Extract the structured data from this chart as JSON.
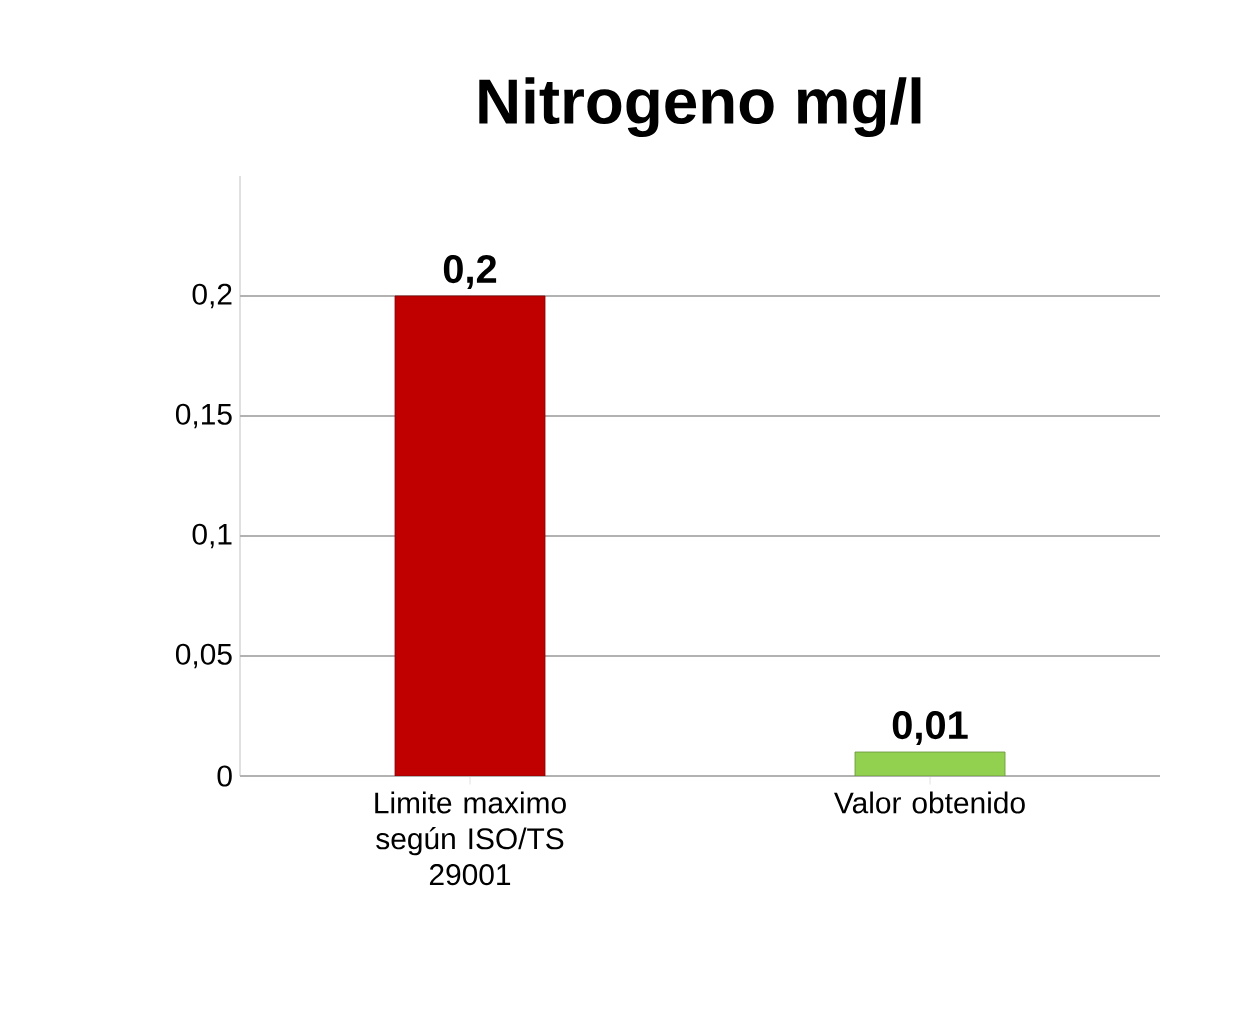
{
  "chart_data": {
    "type": "bar",
    "title": "Nitrogeno mg/l",
    "categories": [
      "Limite maximo según ISO/TS 29001",
      "Valor obtenido"
    ],
    "values": [
      0.2,
      0.01
    ],
    "colors": [
      "#c00000",
      "#92d050"
    ],
    "value_labels": [
      "0,2",
      "0,01"
    ],
    "ylim": [
      0,
      0.25
    ],
    "yticks": [
      {
        "value": 0,
        "label": "0"
      },
      {
        "value": 0.05,
        "label": "0,05"
      },
      {
        "value": 0.1,
        "label": "0,1"
      },
      {
        "value": 0.15,
        "label": "0,15"
      },
      {
        "value": 0.2,
        "label": "0,2"
      }
    ],
    "grid": "y"
  }
}
